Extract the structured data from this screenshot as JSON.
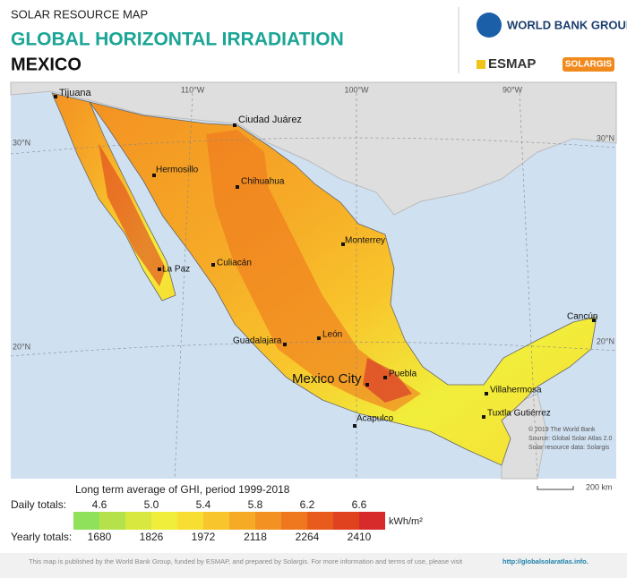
{
  "header": {
    "kicker": "SOLAR RESOURCE MAP",
    "title": "GLOBAL HORIZONTAL IRRADIATION",
    "country": "MEXICO"
  },
  "logos": {
    "world_bank": "WORLD BANK GROUP",
    "esmap": "ESMAP",
    "solargis": "SOLARGIS"
  },
  "map": {
    "lon_labels": [
      "110°W",
      "100°W",
      "90°W"
    ],
    "lat_labels": [
      "30°N",
      "30°N",
      "20°N",
      "20°N"
    ],
    "cities": [
      "Tijuana",
      "Ciudad Juárez",
      "Hermosillo",
      "Chihuahua",
      "Monterrey",
      "La Paz",
      "Culiacán",
      "León",
      "Guadalajara",
      "Mexico City",
      "Puebla",
      "Cancún",
      "Villahermosa",
      "Tuxtla Gutiérrez",
      "Acapulco"
    ],
    "credits": [
      "© 2019 The World Bank",
      "Source: Global Solar Atlas 2.0",
      "Solar resource data: Solargis"
    ],
    "scale": "200 km"
  },
  "legend": {
    "title": "Long term average of GHI, period 1999-2018",
    "daily_label": "Daily totals:",
    "daily": [
      "4.6",
      "5.0",
      "5.4",
      "5.8",
      "6.2",
      "6.6"
    ],
    "yearly_label": "Yearly totals:",
    "yearly": [
      "1680",
      "1826",
      "1972",
      "2118",
      "2264",
      "2410"
    ],
    "unit": "kWh/m²",
    "colors": [
      "#8fe05a",
      "#b5e24a",
      "#d8e83e",
      "#f1ee3b",
      "#f8dd33",
      "#f8c52c",
      "#f6ab27",
      "#f39222",
      "#ef771e",
      "#e85b1d",
      "#e0411f",
      "#d72a2b"
    ]
  },
  "footer": {
    "text": "This map is published by the World Bank Group, funded by ESMAP, and prepared by Solargis. For more information and terms of use, please visit",
    "link": "http://globalsolaratlas.info."
  }
}
